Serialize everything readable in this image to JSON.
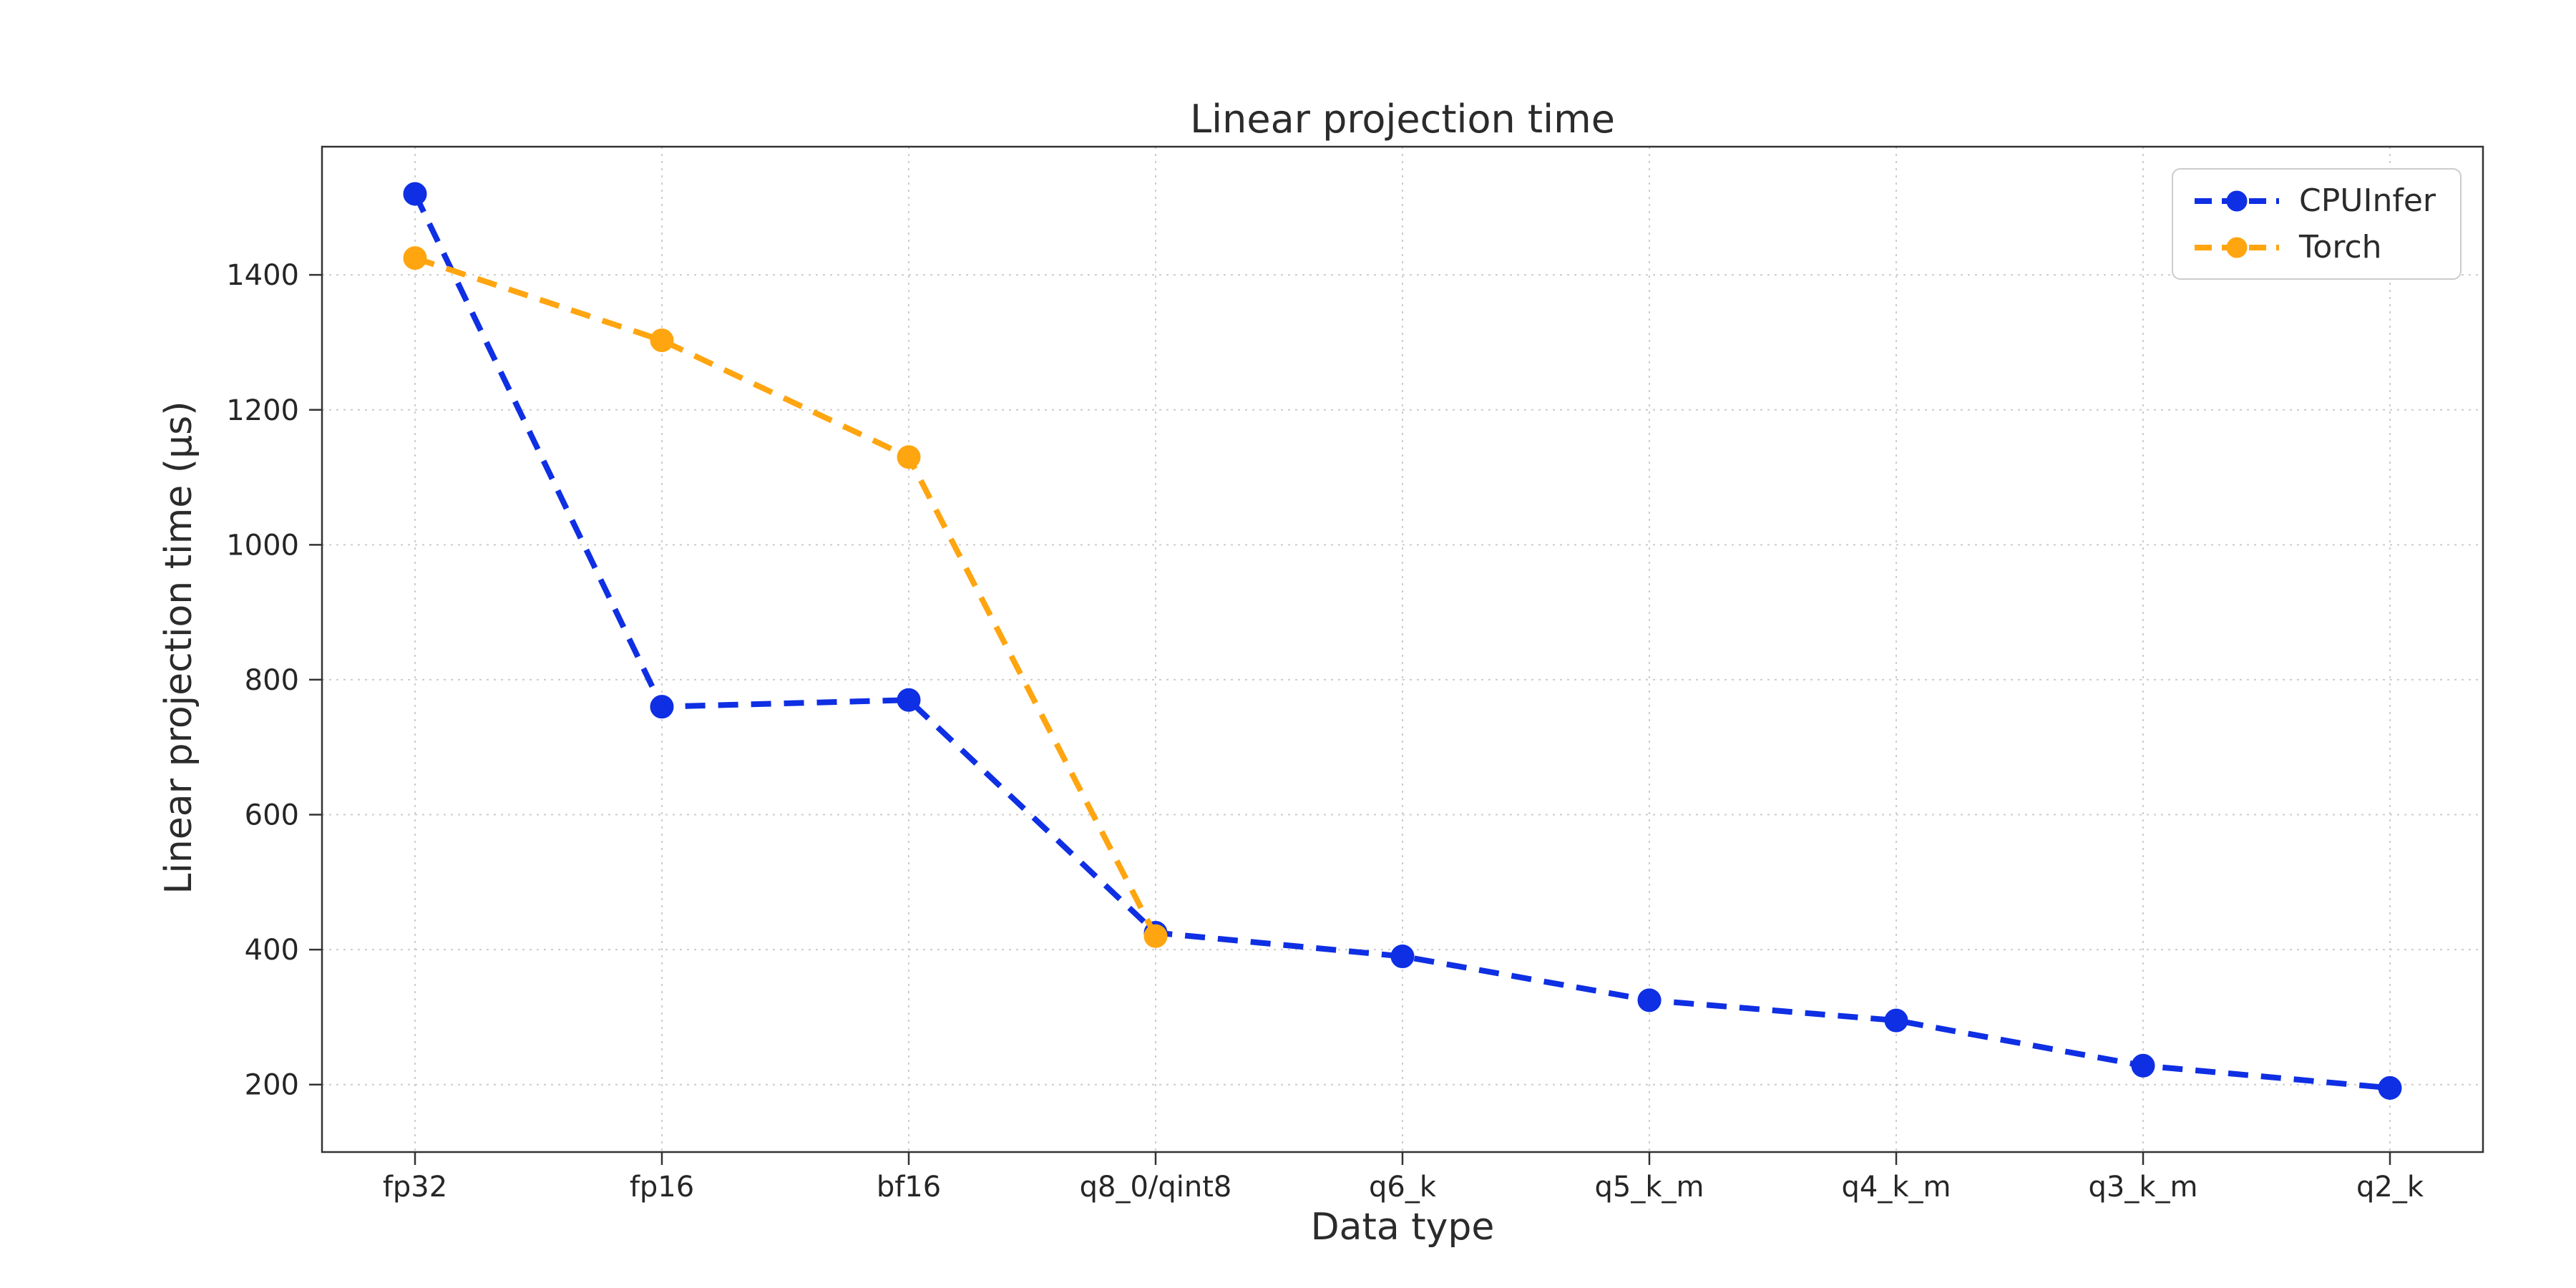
{
  "figure": {
    "title": "Linear projection time",
    "xlabel": "Data type",
    "ylabel": "Linear projection time (µs)"
  },
  "chart_data": {
    "type": "line",
    "title": "Linear projection time",
    "xlabel": "Data type",
    "ylabel": "Linear projection time (µs)",
    "categories": [
      "fp32",
      "fp16",
      "bf16",
      "q8_0/qint8",
      "q6_k",
      "q5_k_m",
      "q4_k_m",
      "q3_k_m",
      "q2_k"
    ],
    "series": [
      {
        "name": "CPUInfer",
        "color": "#0e2fe3",
        "line_style": "dashed",
        "marker": "circle",
        "values": [
          1520,
          760,
          770,
          425,
          390,
          325,
          295,
          228,
          195
        ]
      },
      {
        "name": "Torch",
        "color": "#ffa510",
        "line_style": "dashed",
        "marker": "circle",
        "values": [
          1425,
          1303,
          1130,
          420,
          null,
          null,
          null,
          null,
          null
        ]
      }
    ],
    "yticks": [
      200,
      400,
      600,
      800,
      1000,
      1200,
      1400
    ],
    "ylim": [
      100,
      1590
    ],
    "grid": true,
    "grid_style": "dotted",
    "grid_color": "#cccccc",
    "spine_color": "#333333",
    "legend_position": "upper right"
  }
}
